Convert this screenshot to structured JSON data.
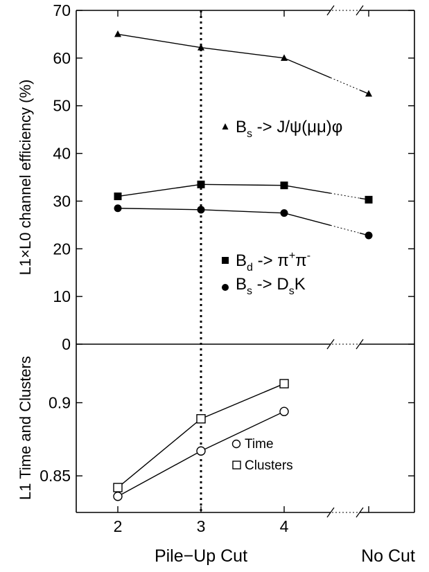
{
  "chart_data": [
    {
      "type": "line",
      "title": "",
      "xlabel": "",
      "ylabel": "L1×L0 channel efficiency (%)",
      "ylim": [
        0,
        70
      ],
      "yticks": [
        "0",
        "10",
        "20",
        "30",
        "40",
        "50",
        "60",
        "70"
      ],
      "x": [
        2,
        3,
        4,
        "No Cut"
      ],
      "series": [
        {
          "name": "B_s -> J/ψ(μμ)φ",
          "marker": "triangle",
          "values": [
            65,
            62.2,
            60,
            52.5
          ]
        },
        {
          "name": "B_d -> π⁺π⁻",
          "marker": "filled-square",
          "values": [
            31,
            33.5,
            33.3,
            30.3
          ]
        },
        {
          "name": "B_s -> D_sK",
          "marker": "filled-circle",
          "values": [
            28.5,
            28.2,
            27.5,
            22.8
          ]
        }
      ],
      "vline_x": 3,
      "axis_break": "between 4 and No Cut"
    },
    {
      "type": "line",
      "title": "",
      "xlabel": "Pile−Up Cut",
      "x_extra_label": "No Cut",
      "ylabel": "L1 Time and Clusters",
      "ylim": [
        0.825,
        0.94
      ],
      "yticks": [
        "0.85",
        "0.9"
      ],
      "xticks": [
        "2",
        "3",
        "4"
      ],
      "x": [
        2,
        3,
        4
      ],
      "series": [
        {
          "name": "Time",
          "marker": "open-circle",
          "values": [
            0.836,
            0.867,
            0.894
          ]
        },
        {
          "name": "Clusters",
          "marker": "open-square",
          "values": [
            0.842,
            0.889,
            0.913
          ]
        }
      ],
      "vline_x": 3
    }
  ],
  "legend_top": {
    "bs_jpsi": {
      "b": "B",
      "sub": "s",
      "rest": " -> J/ψ(μμ)φ"
    },
    "bd_pipi": {
      "b": "B",
      "sub": "d",
      "arrow": " -> π",
      "sup1": "+",
      "pi2": "π",
      "sup2": "-"
    },
    "bs_dsk": {
      "b": "B",
      "sub": "s",
      "arrow": " -> D",
      "sub2": "s",
      "k": "K"
    }
  }
}
